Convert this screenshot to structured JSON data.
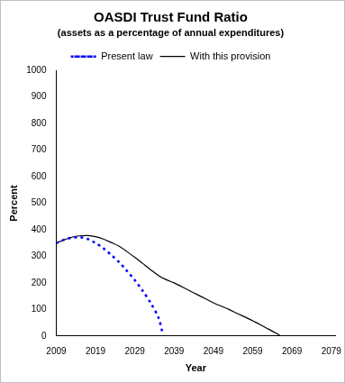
{
  "chart_data": {
    "type": "line",
    "title": "OASDI Trust Fund Ratio",
    "subtitle": "(assets as a percentage of annual expenditures)",
    "x_label": "Year",
    "y_label": "Percent",
    "xlim": [
      2009,
      2080
    ],
    "xticks": [
      2009,
      2019,
      2029,
      2039,
      2049,
      2059,
      2069,
      2079
    ],
    "ylim": [
      0,
      1000
    ],
    "yticks": [
      0,
      100,
      200,
      300,
      400,
      500,
      600,
      700,
      800,
      900,
      1000
    ],
    "grid": false,
    "legend": "top",
    "series": [
      {
        "name": "Present law",
        "color": "#0000ff",
        "line_style": "dotted",
        "x": [
          2009,
          2011,
          2013,
          2015,
          2017,
          2019,
          2021,
          2023,
          2025,
          2027,
          2029,
          2031,
          2033,
          2035,
          2036
        ],
        "values": [
          350,
          362,
          370,
          372,
          365,
          350,
          330,
          305,
          278,
          245,
          210,
          170,
          125,
          70,
          15
        ]
      },
      {
        "name": "With this provision",
        "color": "#000000",
        "line_style": "solid",
        "x": [
          2009,
          2011,
          2013,
          2015,
          2017,
          2019,
          2021,
          2023,
          2025,
          2027,
          2029,
          2031,
          2033,
          2035,
          2037,
          2039,
          2041,
          2043,
          2045,
          2047,
          2049,
          2051,
          2053,
          2055,
          2057,
          2059,
          2061,
          2063,
          2065,
          2066
        ],
        "values": [
          350,
          362,
          372,
          377,
          378,
          374,
          365,
          352,
          338,
          318,
          296,
          273,
          250,
          228,
          212,
          200,
          185,
          170,
          155,
          140,
          125,
          112,
          100,
          85,
          72,
          57,
          42,
          26,
          10,
          0
        ]
      }
    ]
  }
}
